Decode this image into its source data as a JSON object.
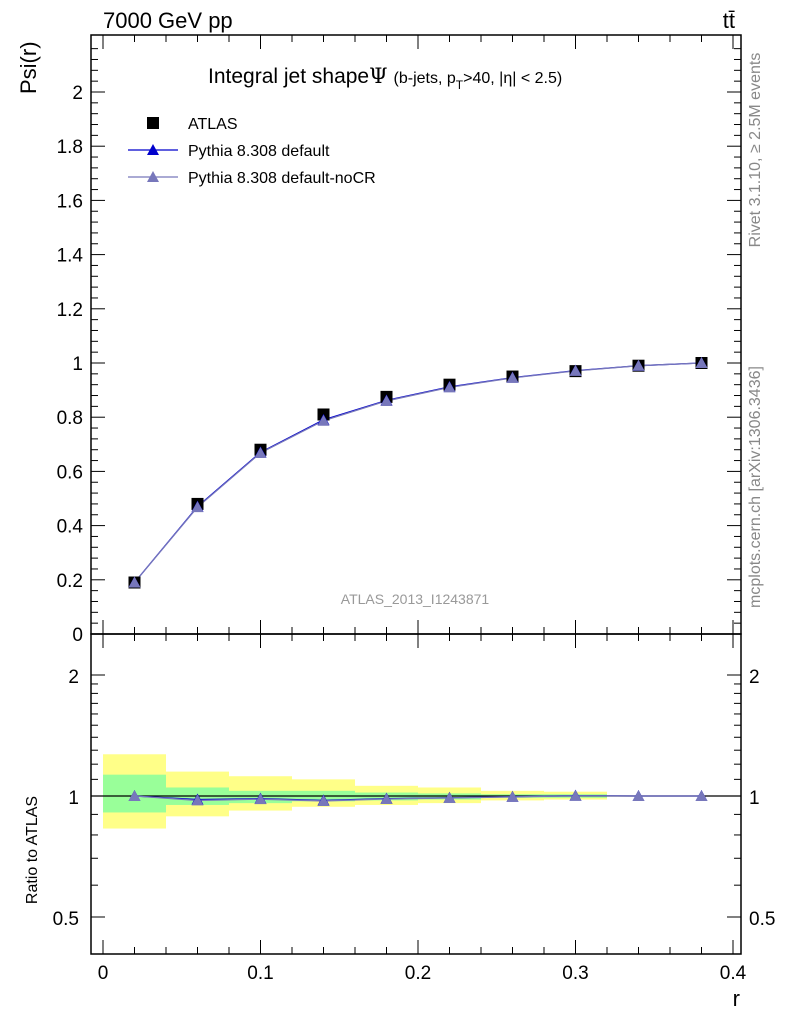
{
  "header": {
    "left": "7000 GeV pp",
    "right": "tt̄"
  },
  "side_labels": {
    "rivet": "Rivet 3.1.10, ≥ 2.5M events",
    "mcplots": "mcplots.cern.ch [arXiv:1306.3436]"
  },
  "watermark": "ATLAS_2013_I1243871",
  "chart_data": [
    {
      "type": "line",
      "title": {
        "main": "Integral jet shape",
        "symbol": "Ψ",
        "paren_open": "(b-jets, p",
        "sub": "T",
        "rest": ">40, |η| < 2.5)"
      },
      "xlabel": "r",
      "ylabel": "Psi(r)",
      "xlim": [
        0,
        0.4
      ],
      "ylim": [
        0,
        2.2
      ],
      "x": [
        0.02,
        0.06,
        0.1,
        0.14,
        0.18,
        0.22,
        0.26,
        0.3,
        0.34,
        0.38
      ],
      "series": [
        {
          "name": "ATLAS",
          "marker": "square",
          "color": "#000000",
          "values": [
            0.19,
            0.48,
            0.68,
            0.81,
            0.875,
            0.92,
            0.95,
            0.97,
            0.99,
            1.0
          ]
        },
        {
          "name": "Pythia 8.308 default",
          "marker": "triangle",
          "color": "#0000cc",
          "values": [
            0.19,
            0.47,
            0.67,
            0.79,
            0.862,
            0.912,
            0.946,
            0.972,
            0.99,
            1.0
          ]
        },
        {
          "name": "Pythia 8.308 default-noCR",
          "marker": "triangle",
          "color": "#7777bb",
          "values": [
            0.19,
            0.468,
            0.668,
            0.787,
            0.86,
            0.91,
            0.945,
            0.971,
            0.99,
            1.0
          ]
        }
      ],
      "legend": "top-left",
      "x_ticks": [
        "0",
        "0.1",
        "0.2",
        "0.3",
        "0.4"
      ],
      "y_ticks": [
        "0",
        "0.2",
        "0.4",
        "0.6",
        "0.8",
        "1",
        "1.2",
        "1.4",
        "1.6",
        "1.8",
        "2"
      ]
    },
    {
      "type": "line",
      "ylabel": "Ratio to ATLAS",
      "ylim": [
        0.4,
        2.3
      ],
      "y_scale": "log",
      "y_ticks": [
        "0.5",
        "1",
        "2"
      ],
      "x": [
        0.02,
        0.06,
        0.1,
        0.14,
        0.18,
        0.22,
        0.26,
        0.3,
        0.34,
        0.38
      ],
      "series": [
        {
          "name": "Pythia 8.308 default",
          "color": "#0000cc",
          "values": [
            1.0,
            0.98,
            0.985,
            0.975,
            0.985,
            0.99,
            0.996,
            1.002,
            1.0,
            1.0
          ]
        },
        {
          "name": "Pythia 8.308 default-noCR",
          "color": "#7777bb",
          "values": [
            1.0,
            0.975,
            0.982,
            0.972,
            0.983,
            0.989,
            0.995,
            1.001,
            1.0,
            1.0
          ]
        }
      ],
      "bands": {
        "bin_edges": [
          0.0,
          0.04,
          0.08,
          0.12,
          0.16,
          0.2,
          0.24,
          0.28,
          0.32,
          0.36,
          0.4
        ],
        "stat_color": "#99ff99",
        "total_color": "#ffff88",
        "stat": [
          [
            0.91,
            1.13
          ],
          [
            0.95,
            1.05
          ],
          [
            0.96,
            1.03
          ],
          [
            0.97,
            1.03
          ],
          [
            0.975,
            1.02
          ],
          [
            0.98,
            1.015
          ],
          [
            0.99,
            1.01
          ],
          [
            0.99,
            1.01
          ],
          null,
          null
        ],
        "total": [
          [
            0.83,
            1.27
          ],
          [
            0.89,
            1.15
          ],
          [
            0.92,
            1.12
          ],
          [
            0.94,
            1.1
          ],
          [
            0.95,
            1.06
          ],
          [
            0.96,
            1.05
          ],
          [
            0.975,
            1.03
          ],
          [
            0.98,
            1.025
          ],
          null,
          null
        ]
      }
    }
  ]
}
